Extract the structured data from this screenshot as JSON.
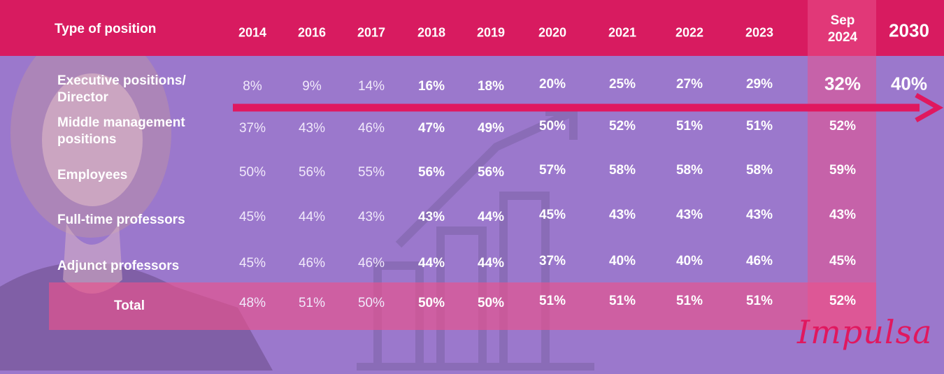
{
  "colors": {
    "header": "#d81b60",
    "background": "#9b78cc",
    "accent": "#e0185f"
  },
  "header": {
    "type_label": "Type of position",
    "years": [
      "2014",
      "2016",
      "2017",
      "2018",
      "2019",
      "2020",
      "2021",
      "2022",
      "2023",
      "Sep 2024",
      "2030"
    ]
  },
  "brand": {
    "logo_text": "Impulsa"
  },
  "chart_data": {
    "type": "table",
    "columns": [
      "2014",
      "2016",
      "2017",
      "2018",
      "2019",
      "2020",
      "2021",
      "2022",
      "2023",
      "Sep 2024",
      "2030"
    ],
    "rows": [
      {
        "label": "Executive positions/ Director",
        "values": [
          "8%",
          "9%",
          "14%",
          "16%",
          "18%",
          "20%",
          "25%",
          "27%",
          "29%",
          "32%",
          "40%"
        ]
      },
      {
        "label": "Middle management positions",
        "values": [
          "37%",
          "43%",
          "46%",
          "47%",
          "49%",
          "50%",
          "52%",
          "51%",
          "51%",
          "52%",
          ""
        ]
      },
      {
        "label": "Employees",
        "values": [
          "50%",
          "56%",
          "55%",
          "56%",
          "56%",
          "57%",
          "58%",
          "58%",
          "58%",
          "59%",
          ""
        ]
      },
      {
        "label": "Full-time professors",
        "values": [
          "45%",
          "44%",
          "43%",
          "43%",
          "44%",
          "45%",
          "43%",
          "43%",
          "43%",
          "43%",
          ""
        ]
      },
      {
        "label": "Adjunct professors",
        "values": [
          "45%",
          "46%",
          "46%",
          "44%",
          "44%",
          "37%",
          "40%",
          "40%",
          "46%",
          "45%",
          ""
        ]
      },
      {
        "label": "Total",
        "values": [
          "48%",
          "51%",
          "50%",
          "50%",
          "50%",
          "51%",
          "51%",
          "51%",
          "51%",
          "52%",
          ""
        ]
      }
    ]
  }
}
